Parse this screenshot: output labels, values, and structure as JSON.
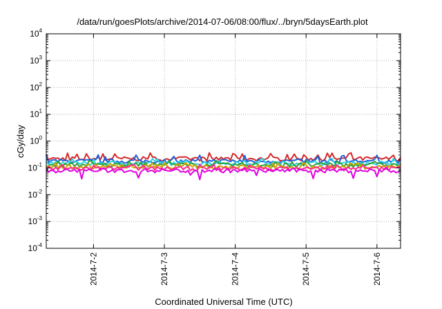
{
  "chart_data": {
    "type": "line",
    "title": "/data/run/goesPlots/archive/2014-07-06/08:00/flux/../bryn/5daysEarth.plot",
    "xlabel": "Coordinated Universal Time (UTC)",
    "ylabel": "cGy/day",
    "y_scale": "log",
    "ylim": [
      0.0001,
      10000
    ],
    "y_ticks": [
      {
        "base": "10",
        "exp": "-4",
        "value": 0.0001
      },
      {
        "base": "10",
        "exp": "-3",
        "value": 0.001
      },
      {
        "base": "10",
        "exp": "-2",
        "value": 0.01
      },
      {
        "base": "10",
        "exp": "-1",
        "value": 0.1
      },
      {
        "base": "10",
        "exp": "0",
        "value": 1
      },
      {
        "base": "10",
        "exp": "1",
        "value": 10
      },
      {
        "base": "10",
        "exp": "2",
        "value": 100
      },
      {
        "base": "10",
        "exp": "3",
        "value": 1000
      },
      {
        "base": "10",
        "exp": "4",
        "value": 10000
      }
    ],
    "xlim": [
      "2014-07-01 08:00",
      "2014-07-06 08:00"
    ],
    "x_ticks": [
      {
        "label": "2014-7-2",
        "value": "2014-07-02 00:00"
      },
      {
        "label": "2014-7-3",
        "value": "2014-07-03 00:00"
      },
      {
        "label": "2014-7-4",
        "value": "2014-07-04 00:00"
      },
      {
        "label": "2014-7-5",
        "value": "2014-07-05 00:00"
      },
      {
        "label": "2014-7-6",
        "value": "2014-07-06 00:00"
      }
    ],
    "grid": true,
    "series": [
      {
        "color": "#d62728",
        "base": 0.22,
        "spike_to": 0.35
      },
      {
        "color": "#1f5fd6",
        "base": 0.18,
        "spike_to": 0.3
      },
      {
        "color": "#2ad2e0",
        "base": 0.15,
        "spike_to": 0.22
      },
      {
        "color": "#2e9e3a",
        "base": 0.13,
        "spike_to": 0.18
      },
      {
        "color": "#c8a400",
        "base": 0.11,
        "spike_to": 0.15
      },
      {
        "color": "#ff2a8a",
        "base": 0.095,
        "spike_to": 0.13
      },
      {
        "color": "#e000e0",
        "base": 0.08,
        "dip_to": 0.035
      }
    ]
  }
}
